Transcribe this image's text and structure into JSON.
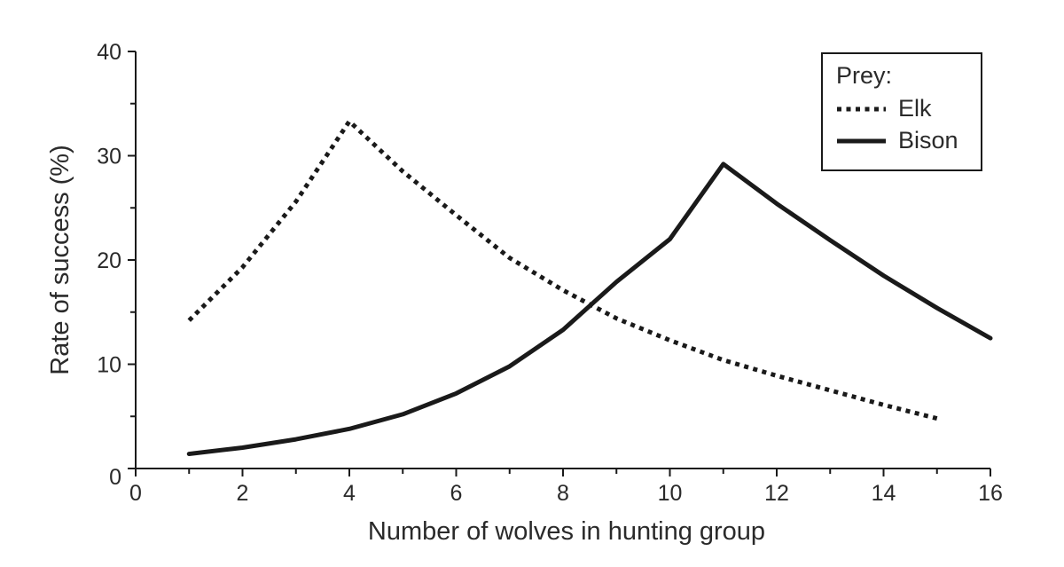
{
  "chart_data": {
    "type": "line",
    "title": "",
    "xlabel": "Number of wolves in hunting group",
    "ylabel": "Rate of success (%)",
    "xlim": [
      0,
      16
    ],
    "ylim": [
      0,
      40
    ],
    "x_ticks": [
      "0",
      "2",
      "4",
      "6",
      "8",
      "10",
      "12",
      "14",
      "16"
    ],
    "y_ticks": [
      "0",
      "10",
      "20",
      "30",
      "40"
    ],
    "grid": false,
    "legend": {
      "title": "Prey:",
      "placement": "top-right",
      "entries": [
        "Elk",
        "Bison"
      ]
    },
    "series": [
      {
        "name": "Elk",
        "style": "dotted",
        "color": "#1a1a1a",
        "x": [
          1,
          2,
          3,
          4,
          5,
          6,
          7,
          8,
          9,
          10,
          11,
          12,
          13,
          14,
          15
        ],
        "y": [
          14.2,
          19.3,
          25.6,
          33.3,
          28.5,
          24.3,
          20.2,
          17.1,
          14.4,
          12.3,
          10.4,
          8.9,
          7.5,
          6.1,
          4.8
        ]
      },
      {
        "name": "Bison",
        "style": "solid",
        "color": "#1a1a1a",
        "x": [
          1,
          2,
          3,
          4,
          5,
          6,
          7,
          8,
          9,
          10,
          11,
          12,
          13,
          14,
          15,
          16
        ],
        "y": [
          1.4,
          2.0,
          2.8,
          3.8,
          5.2,
          7.2,
          9.8,
          13.3,
          17.9,
          22.0,
          29.2,
          25.4,
          21.9,
          18.5,
          15.4,
          12.5
        ]
      }
    ]
  }
}
